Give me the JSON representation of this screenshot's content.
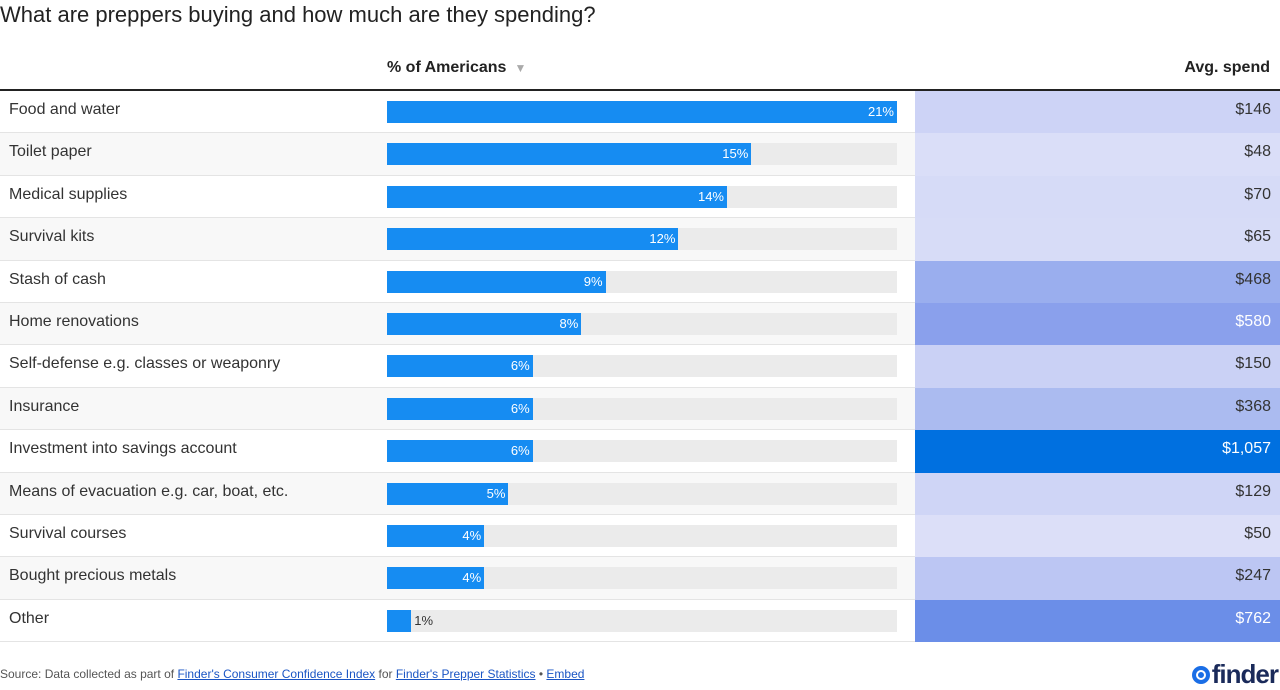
{
  "chart_data": {
    "type": "table",
    "title": "What are preppers buying and how much are they spending?",
    "columns": [
      "",
      "% of Americans",
      "Avg. spend"
    ],
    "sort_indicator": "▼",
    "bar_max": 21,
    "bar_color": "#168cf2",
    "rows": [
      {
        "label": "Food and water",
        "pct": 21,
        "pct_label": "21%",
        "spend": "$146",
        "color": "#cdd3f6",
        "light": false
      },
      {
        "label": "Toilet paper",
        "pct": 15,
        "pct_label": "15%",
        "spend": "$48",
        "color": "#dadef8",
        "light": false
      },
      {
        "label": "Medical supplies",
        "pct": 14,
        "pct_label": "14%",
        "spend": "$70",
        "color": "#d6dbf7",
        "light": false
      },
      {
        "label": "Survival kits",
        "pct": 12,
        "pct_label": "12%",
        "spend": "$65",
        "color": "#d7dcf7",
        "light": false
      },
      {
        "label": "Stash of cash",
        "pct": 9,
        "pct_label": "9%",
        "spend": "$468",
        "color": "#9aaeee",
        "light": false
      },
      {
        "label": "Home renovations",
        "pct": 8,
        "pct_label": "8%",
        "spend": "$580",
        "color": "#8aa0ec",
        "light": true
      },
      {
        "label": "Self-defense e.g. classes or weaponry",
        "pct": 6,
        "pct_label": "6%",
        "spend": "$150",
        "color": "#cad1f5",
        "light": false
      },
      {
        "label": "Insurance",
        "pct": 6,
        "pct_label": "6%",
        "spend": "$368",
        "color": "#abbbf0",
        "light": false
      },
      {
        "label": "Investment into savings account",
        "pct": 6,
        "pct_label": "6%",
        "spend": "$1,057",
        "color": "#0070e0",
        "light": true
      },
      {
        "label": "Means of evacuation e.g. car, boat, etc.",
        "pct": 5,
        "pct_label": "5%",
        "spend": "$129",
        "color": "#cfd5f6",
        "light": false
      },
      {
        "label": "Survival courses",
        "pct": 4,
        "pct_label": "4%",
        "spend": "$50",
        "color": "#dcdff8",
        "light": false
      },
      {
        "label": "Bought precious metals",
        "pct": 4,
        "pct_label": "4%",
        "spend": "$247",
        "color": "#bcc6f3",
        "light": false
      },
      {
        "label": "Other",
        "pct": 1,
        "pct_label": "1%",
        "spend": "$762",
        "color": "#6b8ee8",
        "light": true
      }
    ]
  },
  "footer": {
    "source_prefix": "Source: Data collected as part of ",
    "link1": "Finder's Consumer Confidence Index",
    "for": " for ",
    "link2": "Finder's Prepper Statistics",
    "sep": " • ",
    "embed": "Embed"
  },
  "logo": "finder"
}
